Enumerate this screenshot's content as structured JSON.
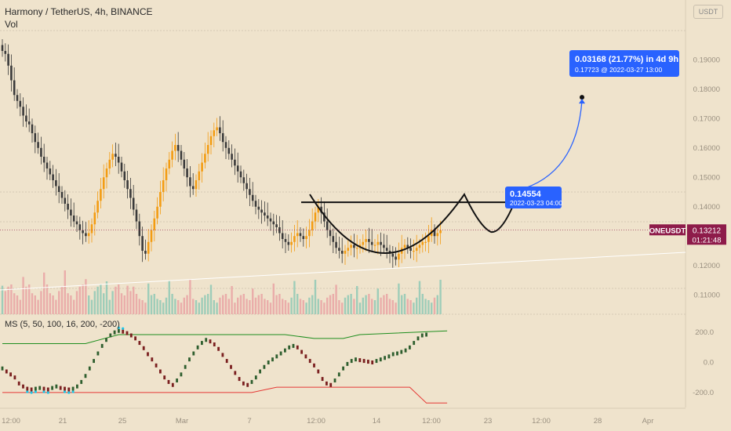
{
  "header": {
    "title": "Harmony / TetherUS, 4h, BINANCE",
    "vol_label": "Vol",
    "currency": "USDT"
  },
  "indicator": {
    "title": "MS (5, 50, 100, 16, 200, -200)",
    "ticks": [
      "200.0",
      "0.0",
      "-200.0"
    ]
  },
  "colors": {
    "background": "#efe3cc",
    "candle_up": "#f39c12",
    "candle_down": "#3a3a3a",
    "vol_up": "#8fc9b5",
    "vol_down": "#e9a3a3",
    "ms_upper": "#1e8e1e",
    "ms_lower": "#e53935",
    "accent_blue": "#2962ff",
    "symbol_badge": "#8e1b4a"
  },
  "chart_data": {
    "type": "candlestick",
    "symbol": "ONEUSDT",
    "timeframe": "4h",
    "price_axis": {
      "min": 0.105,
      "max": 0.205,
      "ticks": [
        "0.19000",
        "0.18000",
        "0.17000",
        "0.16000",
        "0.15000",
        "0.14000",
        "0.12000",
        "0.11000"
      ]
    },
    "x_ticks": [
      "12:00",
      "21",
      "25",
      "Mar",
      "7",
      "12:00",
      "14",
      "12:00",
      "23",
      "12:00",
      "28",
      "Apr"
    ],
    "closes": [
      0.193,
      0.192,
      0.188,
      0.183,
      0.178,
      0.176,
      0.174,
      0.171,
      0.169,
      0.168,
      0.165,
      0.162,
      0.16,
      0.157,
      0.155,
      0.153,
      0.151,
      0.149,
      0.147,
      0.145,
      0.143,
      0.141,
      0.139,
      0.137,
      0.135,
      0.134,
      0.132,
      0.131,
      0.13,
      0.131,
      0.134,
      0.138,
      0.142,
      0.146,
      0.15,
      0.153,
      0.156,
      0.158,
      0.157,
      0.155,
      0.152,
      0.149,
      0.146,
      0.143,
      0.139,
      0.135,
      0.13,
      0.125,
      0.124,
      0.128,
      0.132,
      0.136,
      0.14,
      0.145,
      0.149,
      0.153,
      0.156,
      0.159,
      0.161,
      0.159,
      0.156,
      0.153,
      0.15,
      0.147,
      0.146,
      0.149,
      0.152,
      0.155,
      0.158,
      0.161,
      0.164,
      0.166,
      0.167,
      0.165,
      0.162,
      0.16,
      0.158,
      0.156,
      0.154,
      0.152,
      0.15,
      0.148,
      0.146,
      0.144,
      0.142,
      0.14,
      0.139,
      0.138,
      0.137,
      0.136,
      0.135,
      0.134,
      0.133,
      0.131,
      0.129,
      0.128,
      0.127,
      0.128,
      0.13,
      0.131,
      0.13,
      0.129,
      0.13,
      0.132,
      0.135,
      0.138,
      0.14,
      0.138,
      0.135,
      0.132,
      0.13,
      0.128,
      0.126,
      0.125,
      0.124,
      0.125,
      0.126,
      0.127,
      0.126,
      0.126,
      0.127,
      0.128,
      0.129,
      0.128,
      0.127,
      0.127,
      0.128,
      0.127,
      0.126,
      0.125,
      0.124,
      0.123,
      0.122,
      0.124,
      0.126,
      0.127,
      0.126,
      0.125,
      0.125,
      0.126,
      0.127,
      0.128,
      0.128,
      0.13,
      0.132,
      0.13,
      0.131,
      0.132
    ],
    "volume_scale": [
      0.3,
      0.7,
      0.9,
      1.0,
      0.6,
      0.5
    ],
    "last_price": "0.13212",
    "countdown": "01:21:48",
    "resistance": 0.1415,
    "target_label": "0.03168 (21.77%) in 4d 9h",
    "target_sub": "0.17723 @ 2022-03-27  13:00",
    "start_label": "0.14554",
    "start_sub": "2022-03-23 04:00",
    "target_price": 0.17723,
    "start_price": 0.14554,
    "ms_series": [
      -40,
      -60,
      -80,
      -100,
      -140,
      -160,
      -175,
      -180,
      -175,
      -170,
      -175,
      -180,
      -170,
      -160,
      -170,
      -175,
      -180,
      -175,
      -160,
      -130,
      -90,
      -40,
      10,
      60,
      110,
      150,
      180,
      200,
      210,
      205,
      195,
      180,
      160,
      130,
      95,
      55,
      20,
      -20,
      -60,
      -100,
      -130,
      -150,
      -120,
      -80,
      -30,
      20,
      60,
      100,
      130,
      150,
      140,
      120,
      90,
      50,
      10,
      -30,
      -70,
      -110,
      -140,
      -150,
      -130,
      -100,
      -60,
      -30,
      0,
      20,
      40,
      60,
      80,
      100,
      110,
      100,
      70,
      40,
      10,
      -20,
      -60,
      -110,
      -140,
      -150,
      -120,
      -80,
      -40,
      -10,
      10,
      20,
      15,
      10,
      5,
      0,
      10,
      20,
      30,
      40,
      55,
      60,
      70,
      80,
      100,
      130,
      160,
      180,
      185
    ],
    "ms_upper_levels": [
      [
        0,
        125
      ],
      [
        20,
        125
      ],
      [
        28,
        185
      ],
      [
        68,
        185
      ],
      [
        75,
        160
      ],
      [
        82,
        160
      ],
      [
        86,
        185
      ],
      [
        107,
        210
      ]
    ],
    "ms_lower_levels": [
      [
        0,
        -200
      ],
      [
        60,
        -200
      ],
      [
        66,
        -165
      ],
      [
        98,
        -165
      ],
      [
        102,
        -270
      ],
      [
        107,
        -270
      ]
    ]
  }
}
